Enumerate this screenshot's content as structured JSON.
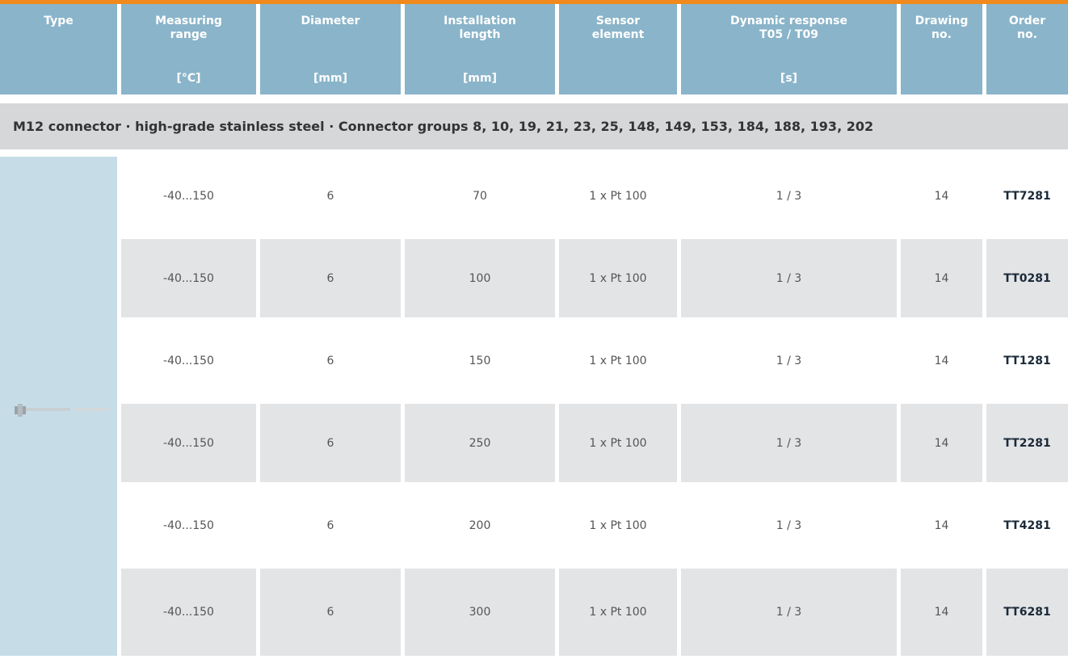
{
  "table": {
    "header": [
      {
        "label": [
          "Type"
        ]
      },
      {
        "label": [
          "Measuring",
          "range"
        ],
        "unit": "[°C]"
      },
      {
        "label": [
          "Diameter"
        ],
        "unit": "[mm]"
      },
      {
        "label": [
          "Installation",
          "length"
        ],
        "unit": "[mm]"
      },
      {
        "label": [
          "Sensor",
          "element"
        ]
      },
      {
        "label": [
          "Dynamic response",
          "T05 / T09"
        ],
        "unit": "[s]"
      },
      {
        "label": [
          "Drawing",
          "no."
        ]
      },
      {
        "label": [
          "Order",
          "no."
        ]
      }
    ],
    "group": "M12 connector · high-grade stainless steel · Connector groups 8, 10, 19, 21, 23, 25, 148, 149, 153, 184, 188, 193, 202",
    "rows": [
      [
        "-40...150",
        "6",
        "70",
        "1 x Pt 100",
        "1 / 3",
        "14",
        "TT7281"
      ],
      [
        "-40...150",
        "6",
        "100",
        "1 x Pt 100",
        "1 / 3",
        "14",
        "TT0281"
      ],
      [
        "-40...150",
        "6",
        "150",
        "1 x Pt 100",
        "1 / 3",
        "14",
        "TT1281"
      ],
      [
        "-40...150",
        "6",
        "250",
        "1 x Pt 100",
        "1 / 3",
        "14",
        "TT2281"
      ],
      [
        "-40...150",
        "6",
        "200",
        "1 x Pt 100",
        "1 / 3",
        "14",
        "TT4281"
      ],
      [
        "-40...150",
        "6",
        "300",
        "1 x Pt 100",
        "1 / 3",
        "14",
        "TT6281"
      ]
    ]
  }
}
